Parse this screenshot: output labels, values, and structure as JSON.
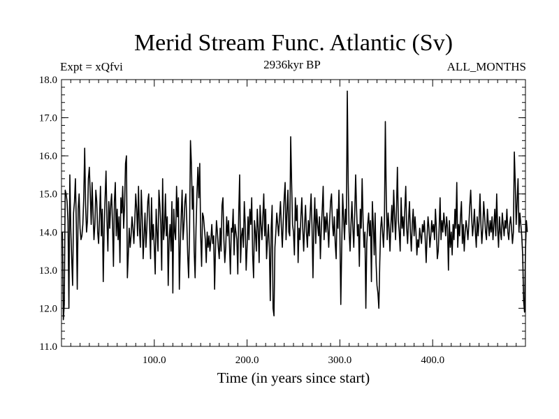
{
  "chart_data": {
    "type": "line",
    "title": "Merid Stream Func. Atlantic (Sv)",
    "subtitle_left": "Expt = xQfvi",
    "subtitle_center": "2936kyr BP",
    "subtitle_right": "ALL_MONTHS",
    "xlabel": "Time (in years since start)",
    "ylabel": "",
    "xlim": [
      0,
      500
    ],
    "ylim": [
      11.0,
      18.0
    ],
    "x_ticks": [
      100,
      200,
      300,
      400
    ],
    "x_tick_labels": [
      "100.0",
      "200.0",
      "300.0",
      "400.0"
    ],
    "y_ticks": [
      11,
      12,
      13,
      14,
      15,
      16,
      17,
      18
    ],
    "y_tick_labels": [
      "11.0",
      "12.0",
      "13.0",
      "14.0",
      "15.0",
      "16.0",
      "17.0",
      "18.0"
    ],
    "x_start": 1,
    "x_step": 1,
    "series": [
      {
        "name": "Merid Stream Func. Atlantic",
        "color": "#000000",
        "values": [
          14.0,
          11.7,
          12.1,
          15.1,
          15.0,
          14.8,
          14.3,
          12.0,
          15.5,
          14.1,
          13.3,
          12.6,
          14.5,
          14.8,
          15.4,
          14.2,
          12.5,
          14.6,
          15.0,
          14.1,
          13.8,
          13.9,
          14.2,
          14.9,
          16.2,
          14.7,
          14.0,
          14.3,
          15.4,
          15.7,
          15.0,
          14.2,
          15.3,
          14.5,
          13.8,
          14.2,
          15.1,
          14.8,
          14.0,
          13.7,
          14.4,
          15.2,
          13.9,
          14.6,
          12.7,
          14.1,
          14.9,
          15.6,
          14.3,
          13.5,
          14.8,
          14.1,
          14.7,
          15.0,
          14.2,
          13.1,
          14.8,
          15.3,
          13.9,
          14.6,
          13.8,
          14.4,
          13.2,
          14.9,
          14.5,
          15.2,
          14.1,
          14.7,
          15.8,
          16.0,
          12.8,
          13.4,
          14.1,
          13.6,
          13.9,
          14.4,
          14.1,
          13.7,
          14.3,
          15.0,
          14.6,
          13.9,
          15.2,
          14.1,
          13.6,
          15.1,
          14.4,
          13.3,
          13.9,
          14.5,
          13.6,
          14.1,
          14.8,
          15.0,
          14.1,
          13.3,
          14.9,
          13.8,
          14.2,
          13.6,
          12.9,
          14.6,
          14.0,
          13.5,
          15.1,
          14.7,
          14.2,
          13.0,
          15.4,
          13.8,
          14.1,
          15.0,
          13.9,
          14.4,
          12.6,
          13.8,
          14.2,
          13.5,
          14.8,
          12.4,
          14.6,
          14.0,
          13.8,
          15.2,
          14.4,
          14.9,
          12.5,
          13.6,
          14.4,
          15.1,
          13.8,
          14.2,
          14.8,
          15.0,
          14.3,
          13.4,
          12.8,
          14.0,
          16.4,
          15.8,
          14.6,
          15.2,
          13.5,
          12.8,
          14.1,
          15.0,
          15.7,
          14.9,
          15.8,
          13.9,
          13.1,
          14.5,
          14.4,
          14.1,
          13.8,
          13.2,
          14.0,
          13.6,
          13.9,
          13.5,
          13.8,
          14.2,
          13.7,
          13.9,
          12.5,
          13.6,
          14.3,
          14.0,
          13.6,
          13.3,
          14.1,
          13.5,
          14.7,
          14.9,
          13.8,
          13.2,
          13.6,
          14.4,
          13.9,
          14.3,
          13.7,
          12.9,
          14.1,
          14.0,
          14.6,
          13.4,
          14.2,
          14.0,
          13.8,
          12.9,
          14.5,
          15.5,
          13.2,
          13.9,
          14.1,
          13.6,
          14.8,
          14.2,
          13.0,
          13.6,
          14.4,
          13.8,
          14.6,
          14.2,
          14.9,
          13.4,
          12.8,
          14.3,
          14.0,
          13.5,
          14.6,
          14.1,
          13.2,
          14.7,
          14.2,
          13.8,
          14.4,
          15.0,
          13.9,
          14.6,
          13.3,
          13.8,
          14.2,
          13.6,
          12.2,
          14.1,
          14.7,
          12.0,
          11.8,
          13.6,
          14.0,
          14.5,
          14.2,
          13.9,
          14.4,
          14.8,
          14.1,
          13.6,
          14.3,
          14.9,
          15.3,
          13.8,
          14.5,
          15.1,
          14.0,
          13.9,
          16.5,
          15.3,
          14.2,
          14.0,
          13.4,
          14.9,
          14.3,
          14.7,
          13.2,
          14.1,
          13.8,
          14.4,
          14.9,
          14.1,
          13.5,
          14.2,
          14.7,
          14.0,
          13.6,
          14.3,
          13.9,
          14.5,
          15.0,
          14.1,
          12.8,
          14.2,
          14.9,
          13.7,
          14.6,
          14.2,
          13.9,
          14.4,
          13.3,
          14.1,
          14.6,
          15.2,
          13.8,
          14.4,
          14.0,
          14.5,
          14.1,
          13.6,
          14.3,
          14.8,
          15.0,
          14.2,
          13.9,
          14.4,
          13.7,
          13.3,
          14.6,
          14.1,
          15.1,
          14.0,
          12.1,
          13.6,
          15.0,
          14.4,
          13.8,
          14.6,
          14.2,
          17.7,
          15.3,
          14.0,
          13.5,
          14.2,
          14.8,
          14.1,
          13.6,
          14.5,
          15.5,
          14.6,
          13.9,
          14.2,
          13.1,
          14.6,
          14.1,
          15.4,
          14.3,
          13.6,
          14.0,
          12.0,
          13.7,
          14.2,
          14.5,
          13.9,
          14.3,
          12.7,
          14.8,
          14.2,
          13.4,
          14.5,
          13.2,
          12.6,
          12.4,
          12.0,
          13.2,
          14.1,
          14.4,
          14.0,
          13.6,
          14.3,
          16.9,
          14.9,
          13.8,
          14.5,
          14.1,
          13.5,
          14.2,
          14.7,
          14.0,
          15.1,
          14.4,
          13.8,
          14.6,
          15.7,
          14.3,
          14.0,
          13.5,
          14.9,
          14.1,
          14.4,
          13.9,
          14.6,
          15.2,
          14.1,
          13.7,
          14.3,
          14.8,
          14.0,
          13.5,
          14.2,
          14.6,
          13.9,
          14.4,
          14.0,
          13.4,
          13.8,
          13.6,
          14.1,
          13.9,
          13.7,
          14.2,
          14.0,
          14.3,
          13.8,
          13.2,
          13.9,
          14.4,
          14.1,
          13.6,
          13.9,
          14.3,
          14.0,
          14.2,
          13.8,
          14.6,
          14.1,
          13.3,
          13.5,
          14.1,
          14.9,
          13.8,
          14.3,
          14.0,
          14.5,
          14.2,
          13.9,
          14.4,
          14.1,
          13.0,
          14.3,
          13.6,
          14.0,
          13.4,
          14.2,
          13.8,
          14.6,
          14.1,
          15.3,
          13.6,
          14.2,
          13.9,
          14.4,
          14.8,
          13.7,
          14.2,
          13.5,
          14.0,
          14.3,
          14.1,
          13.8,
          14.2,
          14.7,
          15.1,
          14.4,
          13.9,
          14.2,
          14.6,
          14.0,
          13.6,
          14.4,
          13.9,
          14.3,
          15.0,
          14.2,
          13.7,
          14.1,
          14.8,
          14.4,
          14.0,
          13.8,
          14.6,
          14.2,
          13.9,
          14.3,
          14.0,
          14.4,
          13.8,
          14.2,
          14.6,
          13.9,
          15.0,
          14.1,
          13.6,
          14.4,
          14.0,
          13.8,
          14.5,
          14.2,
          13.9,
          14.3,
          14.1,
          14.6,
          14.0,
          13.8,
          14.2,
          14.4,
          14.1,
          13.7,
          14.0,
          16.1,
          15.3,
          14.2,
          14.8,
          15.4,
          14.0,
          14.5,
          14.2,
          13.9,
          13.4,
          12.2,
          11.9,
          13.5,
          14.3,
          14.0
        ]
      }
    ]
  }
}
